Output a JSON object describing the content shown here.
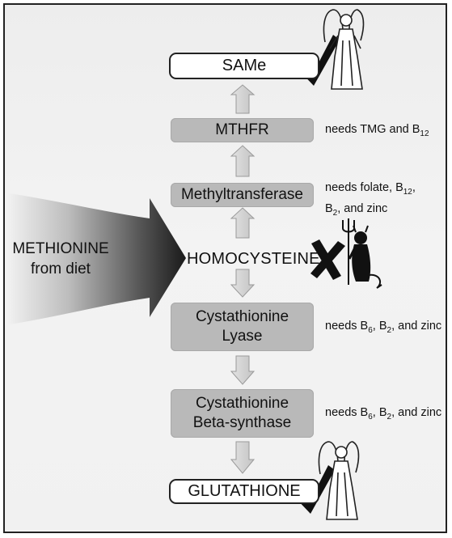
{
  "nodes": {
    "same": "SAMe",
    "mthfr": "MTHFR",
    "methyltransferase": "Methyltransferase",
    "homocysteine": "HOMOCYSTEINE",
    "lyase_line1": "Cystathionine",
    "lyase_line2": "Lyase",
    "synthase_line1": "Cystathionine",
    "synthase_line2": "Beta-synthase",
    "glutathione": "GLUTATHIONE"
  },
  "source": {
    "line1": "METHIONINE",
    "line2": "from diet"
  },
  "notes": {
    "mthfr": {
      "pre": "needs TMG and B",
      "sub": "12"
    },
    "methyltransferase": {
      "l1_pre": "needs folate, B",
      "l1_sub": "12",
      "l1_post": ",",
      "l2_pre": "B",
      "l2_sub": "2",
      "l2_post": ", and zinc"
    },
    "lyase": {
      "pre": "needs B",
      "sub1": "6",
      "mid": ", B",
      "sub2": "2",
      "post": ", and zinc"
    },
    "synthase": {
      "pre": "needs B",
      "sub1": "6",
      "mid": ", B",
      "sub2": "2",
      "post": ", and zinc"
    }
  },
  "icons": {
    "good": "checkmark-icon",
    "bad": "x-mark-icon",
    "angel": "angel-figure-icon",
    "devil": "devil-figure-icon"
  },
  "colors": {
    "box_fill": "#b9b9b9",
    "arrow_fill": "#cfcfcf",
    "mark": "#111111"
  }
}
